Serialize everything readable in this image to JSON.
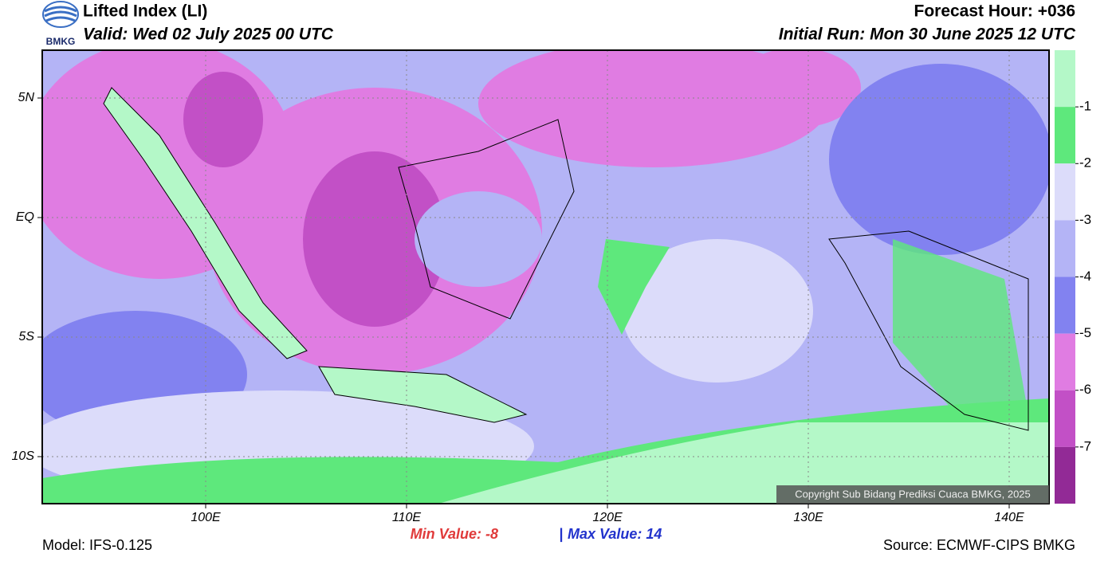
{
  "header": {
    "title": "Lifted Index (LI)",
    "valid": "Valid: Wed 02 July 2025 00 UTC",
    "forecast_hour": "Forecast Hour: +036",
    "initial_run": "Initial Run: Mon 30 June 2025 12 UTC",
    "logo": "BMKG"
  },
  "map": {
    "lat_ticks": [
      {
        "value": 5,
        "label": "5N"
      },
      {
        "value": 0,
        "label": "EQ"
      },
      {
        "value": -5,
        "label": "5S"
      },
      {
        "value": -10,
        "label": "10S"
      }
    ],
    "lon_ticks": [
      {
        "value": 100,
        "label": "100E"
      },
      {
        "value": 110,
        "label": "110E"
      },
      {
        "value": 120,
        "label": "120E"
      },
      {
        "value": 130,
        "label": "130E"
      },
      {
        "value": 140,
        "label": "140E"
      }
    ],
    "copyright": "Copyright Sub Bidang Prediksi Cuaca BMKG, 2025"
  },
  "colorbar": {
    "levels": [
      -1,
      -2,
      -3,
      -4,
      -5,
      -6,
      -7
    ],
    "colors": [
      "#b4f8c8",
      "#5ee87c",
      "#dcdcfa",
      "#b4b4f6",
      "#8282f0",
      "#e07ce2",
      "#c250c6",
      "#922a96"
    ]
  },
  "footer": {
    "min_label": "Min Value:",
    "min_value": -8,
    "separator": "|",
    "max_label": "Max Value:",
    "max_value": 14,
    "model": "Model: IFS-0.125",
    "source": "Source: ECMWF-CIPS BMKG"
  }
}
